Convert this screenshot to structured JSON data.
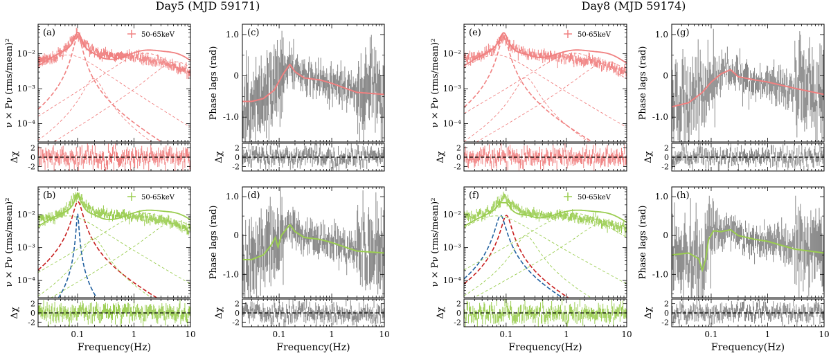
{
  "figure": {
    "group_titles": [
      "Day5 (MJD 59171)",
      "Day8 (MJD 59174)"
    ]
  },
  "chart_data": [
    {
      "panel": "(a)",
      "type": "line",
      "scale": "log-log",
      "ylabel": "ν × Pν (rms/mean)²",
      "xlabel": "",
      "legend": "50-65keV",
      "legend_position": "top-right",
      "xlim": [
        0.02,
        10
      ],
      "ylim": [
        3e-05,
        0.07
      ],
      "x_ticks": [
        "0.1",
        "1",
        "10"
      ],
      "y_ticks": [
        "10⁻⁴",
        "10⁻³",
        "10⁻²"
      ],
      "data_color": "#f08080",
      "series": [
        {
          "name": "data",
          "x": [
            0.025,
            0.04,
            0.06,
            0.08,
            0.1,
            0.13,
            0.2,
            0.4,
            1,
            3,
            10
          ],
          "y": [
            0.007,
            0.0085,
            0.013,
            0.025,
            0.038,
            0.02,
            0.011,
            0.009,
            0.008,
            0.006,
            0.003
          ]
        },
        {
          "name": "total model"
        },
        {
          "name": "QPO Lorentzian",
          "center": 0.1,
          "q": 3.0,
          "peak": 0.031
        },
        {
          "name": "low-frequency Lorentzian",
          "center": 0.025,
          "q": 0.2,
          "peak": 0.005
        },
        {
          "name": "harmonic Lorentzian",
          "center": 0.18,
          "q": 1.3,
          "peak": 0.0019
        },
        {
          "name": "broad Lorentzian",
          "center": 0.6,
          "q": 0.2,
          "peak": 0.0056
        },
        {
          "name": "high-frequency Lorentzian",
          "center": 3.5,
          "q": 0.4,
          "peak": 0.0045
        }
      ],
      "residuals": {
        "label": "Δχ",
        "ylim": [
          -3,
          3
        ],
        "y_ticks": [
          "2",
          "0",
          "-2"
        ]
      }
    },
    {
      "panel": "(b)",
      "type": "line",
      "scale": "log-log",
      "ylabel": "ν × Pν (rms/mean)²",
      "xlabel": "Frequency(Hz)",
      "legend": "50-65keV",
      "legend_position": "top-right",
      "xlim": [
        0.02,
        10
      ],
      "ylim": [
        3e-05,
        0.07
      ],
      "x_ticks": [
        "0.1",
        "1",
        "10"
      ],
      "y_ticks": [
        "10⁻⁴",
        "10⁻³",
        "10⁻²"
      ],
      "data_color": "#9acd50",
      "series": [
        {
          "name": "data",
          "x": [
            0.025,
            0.04,
            0.06,
            0.08,
            0.1,
            0.13,
            0.2,
            0.4,
            1,
            3,
            10
          ],
          "y": [
            0.008,
            0.009,
            0.014,
            0.027,
            0.04,
            0.021,
            0.012,
            0.01,
            0.009,
            0.007,
            0.0035
          ]
        },
        {
          "name": "total model"
        },
        {
          "name": "QPO Lorentzian",
          "center": 0.1,
          "q": 3.0,
          "peak": 0.025,
          "color": "#c81e1e"
        },
        {
          "name": "narrow QPO Lorentzian",
          "center": 0.1,
          "q": 12.0,
          "peak": 0.011,
          "color": "#1f5f9f"
        },
        {
          "name": "low-frequency Lorentzian",
          "center": 0.025,
          "q": 0.2,
          "peak": 0.005
        },
        {
          "name": "harmonic Lorentzian",
          "center": 0.18,
          "q": 1.3,
          "peak": 0.0019
        },
        {
          "name": "broad Lorentzian",
          "center": 0.6,
          "q": 0.2,
          "peak": 0.006
        },
        {
          "name": "high-frequency Lorentzian",
          "center": 3.5,
          "q": 0.4,
          "peak": 0.005
        }
      ],
      "residuals": {
        "label": "Δχ",
        "ylim": [
          -3,
          3
        ],
        "y_ticks": [
          "2",
          "0",
          "-2"
        ]
      }
    },
    {
      "panel": "(c)",
      "type": "line",
      "scale": "log-x",
      "ylabel": "Phase lags (rad)",
      "xlabel": "",
      "xlim": [
        0.02,
        10
      ],
      "ylim": [
        -1.6,
        1.25
      ],
      "x_ticks": [
        "0.1",
        "1",
        "10"
      ],
      "y_ticks": [
        "1.0",
        "0",
        "-1.0"
      ],
      "model_color": "#f08080",
      "series": [
        {
          "name": "model",
          "x": [
            0.03,
            0.05,
            0.08,
            0.12,
            0.16,
            0.2,
            0.3,
            0.6,
            1,
            3,
            10
          ],
          "y": [
            -0.62,
            -0.55,
            -0.35,
            0.05,
            0.28,
            0.1,
            -0.05,
            -0.1,
            -0.18,
            -0.4,
            -0.45
          ]
        }
      ],
      "residuals": {
        "label": "Δχ",
        "ylim": [
          -3,
          3
        ],
        "y_ticks": [
          "2",
          "0",
          "-2"
        ]
      }
    },
    {
      "panel": "(d)",
      "type": "line",
      "scale": "log-x",
      "ylabel": "Phase lags (rad)",
      "xlabel": "Frequency(Hz)",
      "xlim": [
        0.02,
        10
      ],
      "ylim": [
        -1.6,
        1.25
      ],
      "x_ticks": [
        "0.1",
        "1",
        "10"
      ],
      "y_ticks": [
        "1.0",
        "0",
        "-1.0"
      ],
      "model_color": "#9acd50",
      "series": [
        {
          "name": "model",
          "x": [
            0.03,
            0.05,
            0.07,
            0.085,
            0.095,
            0.11,
            0.16,
            0.2,
            0.3,
            0.6,
            1,
            3,
            10
          ],
          "y": [
            -0.62,
            -0.5,
            -0.25,
            -0.05,
            -0.3,
            0.0,
            0.28,
            0.1,
            -0.05,
            -0.1,
            -0.18,
            -0.4,
            -0.45
          ]
        }
      ],
      "residuals": {
        "label": "Δχ",
        "ylim": [
          -3,
          3
        ],
        "y_ticks": [
          "2",
          "0",
          "-2"
        ]
      }
    },
    {
      "panel": "(e)",
      "type": "line",
      "scale": "log-log",
      "ylabel": "ν × Pν (rms/mean)²",
      "xlabel": "",
      "legend": "50-65keV",
      "legend_position": "top-right",
      "xlim": [
        0.02,
        10
      ],
      "ylim": [
        3e-05,
        0.07
      ],
      "x_ticks": [
        "0.1",
        "1",
        "10"
      ],
      "y_ticks": [
        "10⁻⁴",
        "10⁻³",
        "10⁻²"
      ],
      "data_color": "#f08080",
      "series": [
        {
          "name": "data",
          "x": [
            0.025,
            0.04,
            0.06,
            0.08,
            0.09,
            0.12,
            0.2,
            0.4,
            1,
            3,
            10
          ],
          "y": [
            0.008,
            0.009,
            0.013,
            0.025,
            0.035,
            0.018,
            0.011,
            0.009,
            0.008,
            0.006,
            0.003
          ]
        },
        {
          "name": "total model"
        },
        {
          "name": "QPO Lorentzian",
          "center": 0.09,
          "q": 3.0,
          "peak": 0.03
        },
        {
          "name": "low-frequency Lorentzian",
          "center": 0.025,
          "q": 0.2,
          "peak": 0.005
        },
        {
          "name": "harmonic Lorentzian",
          "center": 0.2,
          "q": 1.3,
          "peak": 0.002
        },
        {
          "name": "broad Lorentzian",
          "center": 0.5,
          "q": 0.2,
          "peak": 0.0056
        },
        {
          "name": "high-frequency Lorentzian",
          "center": 3.0,
          "q": 0.4,
          "peak": 0.0045
        }
      ],
      "residuals": {
        "label": "Δχ",
        "ylim": [
          -3,
          3
        ],
        "y_ticks": [
          "2",
          "0",
          "-2"
        ]
      }
    },
    {
      "panel": "(f)",
      "type": "line",
      "scale": "log-log",
      "ylabel": "ν × Pν (rms/mean)²",
      "xlabel": "Frequency(Hz)",
      "legend": "50-65keV",
      "legend_position": "top-right",
      "xlim": [
        0.02,
        10
      ],
      "ylim": [
        3e-05,
        0.07
      ],
      "x_ticks": [
        "0.1",
        "1",
        "10"
      ],
      "y_ticks": [
        "10⁻⁴",
        "10⁻³",
        "10⁻²"
      ],
      "data_color": "#9acd50",
      "series": [
        {
          "name": "data",
          "x": [
            0.025,
            0.04,
            0.06,
            0.08,
            0.09,
            0.12,
            0.2,
            0.4,
            1,
            3,
            10
          ],
          "y": [
            0.009,
            0.01,
            0.015,
            0.028,
            0.038,
            0.02,
            0.012,
            0.01,
            0.009,
            0.007,
            0.0035
          ]
        },
        {
          "name": "total model"
        },
        {
          "name": "QPO Lorentzian",
          "center": 0.1,
          "q": 3.0,
          "peak": 0.0095,
          "color": "#c81e1e"
        },
        {
          "name": "narrow QPO Lorentzian",
          "center": 0.08,
          "q": 3.0,
          "peak": 0.0095,
          "color": "#1f5f9f"
        },
        {
          "name": "low-frequency Lorentzian",
          "center": 0.025,
          "q": 0.2,
          "peak": 0.005
        },
        {
          "name": "harmonic Lorentzian",
          "center": 0.2,
          "q": 1.3,
          "peak": 0.0022
        },
        {
          "name": "broad Lorentzian",
          "center": 0.5,
          "q": 0.2,
          "peak": 0.006
        },
        {
          "name": "high-frequency Lorentzian",
          "center": 3.0,
          "q": 0.4,
          "peak": 0.005
        }
      ],
      "residuals": {
        "label": "Δχ",
        "ylim": [
          -3,
          3
        ],
        "y_ticks": [
          "2",
          "0",
          "-2"
        ]
      }
    },
    {
      "panel": "(g)",
      "type": "line",
      "scale": "log-x",
      "ylabel": "Phase lags (rad)",
      "xlabel": "",
      "xlim": [
        0.02,
        10
      ],
      "ylim": [
        -1.6,
        1.25
      ],
      "x_ticks": [
        "0.1",
        "1",
        "10"
      ],
      "y_ticks": [
        "1.0",
        "0",
        "-1.0"
      ],
      "model_color": "#f08080",
      "series": [
        {
          "name": "model",
          "x": [
            0.02,
            0.04,
            0.07,
            0.1,
            0.15,
            0.22,
            0.3,
            0.6,
            1,
            3,
            10
          ],
          "y": [
            -0.75,
            -0.65,
            -0.4,
            -0.15,
            0.05,
            0.15,
            -0.02,
            -0.1,
            -0.15,
            -0.3,
            -0.45
          ]
        }
      ],
      "residuals": {
        "label": "Δχ",
        "ylim": [
          -3,
          3
        ],
        "y_ticks": [
          "2",
          "0",
          "-2"
        ]
      }
    },
    {
      "panel": "(h)",
      "type": "line",
      "scale": "log-x",
      "ylabel": "Phase lags (rad)",
      "xlabel": "Frequency(Hz)",
      "xlim": [
        0.02,
        10
      ],
      "ylim": [
        -1.6,
        1.25
      ],
      "x_ticks": [
        "0.1",
        "1",
        "10"
      ],
      "y_ticks": [
        "1.0",
        "0",
        "-1.0"
      ],
      "model_color": "#9acd50",
      "series": [
        {
          "name": "model",
          "x": [
            0.02,
            0.04,
            0.06,
            0.07,
            0.08,
            0.09,
            0.11,
            0.15,
            0.22,
            0.3,
            0.6,
            1,
            3,
            10
          ],
          "y": [
            -0.5,
            -0.45,
            -0.6,
            -0.9,
            -0.6,
            -0.1,
            0.12,
            0.1,
            0.15,
            0.0,
            -0.1,
            -0.15,
            -0.35,
            -0.45
          ]
        }
      ],
      "residuals": {
        "label": "Δχ",
        "ylim": [
          -3,
          3
        ],
        "y_ticks": [
          "2",
          "0",
          "-2"
        ]
      }
    }
  ]
}
